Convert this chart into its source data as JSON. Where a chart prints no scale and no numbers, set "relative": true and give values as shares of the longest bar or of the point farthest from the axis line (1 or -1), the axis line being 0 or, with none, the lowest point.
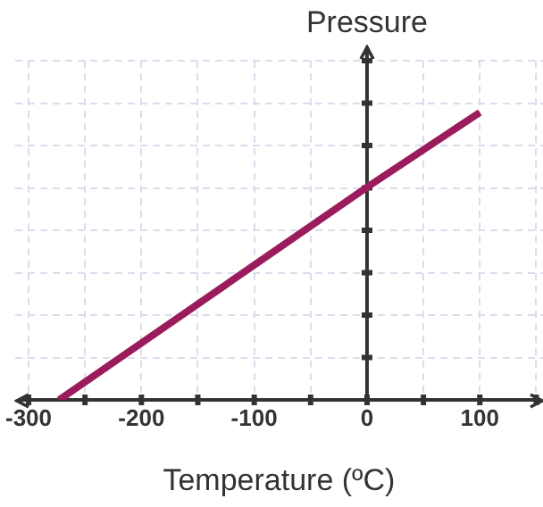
{
  "chart_data": {
    "type": "line",
    "xlabel": "Temperature (ºC)",
    "ylabel": "Pressure",
    "relative": true,
    "x": [
      -273,
      0,
      100
    ],
    "series": [
      {
        "color": "#9b1c5c",
        "values": [
          0,
          0.74,
          1
        ]
      }
    ],
    "xlim": [
      -312,
      156
    ],
    "xticks": [
      -300,
      {
        "value": -250,
        "label": null
      },
      -200,
      {
        "value": -150,
        "label": null
      },
      -100,
      {
        "value": -50,
        "label": null
      },
      0,
      {
        "value": 50,
        "label": null
      },
      100,
      {
        "value": 150,
        "label": null
      }
    ],
    "grid": true,
    "legend": false,
    "marker": "none",
    "line_style": "solid"
  }
}
